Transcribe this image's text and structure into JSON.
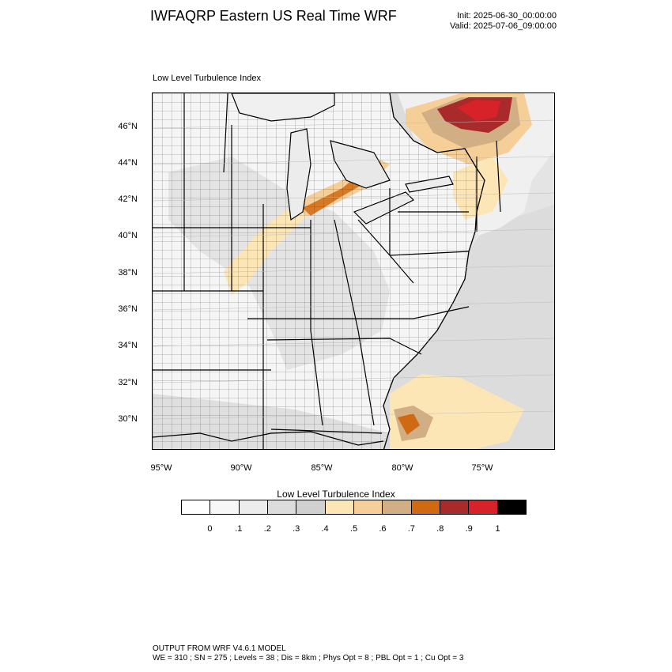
{
  "header": {
    "title": "IWFAQRP Eastern US Real Time WRF",
    "init": "Init: 2025-06-30_00:00:00",
    "valid": "Valid: 2025-07-06_09:00:00"
  },
  "panel": {
    "label": "Low Level Turbulence Index"
  },
  "map": {
    "projection": "lambert-conformal",
    "lat_labels": [
      "46°N",
      "44°N",
      "42°N",
      "40°N",
      "38°N",
      "36°N",
      "34°N",
      "32°N",
      "30°N"
    ],
    "lon_labels": [
      "95°W",
      "90°W",
      "85°W",
      "80°W",
      "75°W"
    ],
    "field": "Low Level Turbulence Index",
    "features": {
      "highest_values": "southern Quebec (0.8–0.9)",
      "elevated_bands": [
        "Great Lakes / Michigan (0.5–0.7)",
        "Illinois–Indiana band (0.4–0.5)",
        "off Georgia–Florida coast (0.5–0.7)",
        "northern New York / New England (0.5)"
      ],
      "background": "0–0.3 over most of the southeast and Atlantic"
    }
  },
  "colorbar": {
    "title": "Low Level Turbulence Index",
    "labels": [
      "0",
      ".1",
      ".2",
      ".3",
      ".4",
      ".5",
      ".6",
      ".7",
      ".8",
      ".9",
      "1"
    ],
    "colors": [
      "#ffffff",
      "#f7f7f7",
      "#ececec",
      "#dcdcdc",
      "#d0d0d0",
      "#fde6b5",
      "#f5cf97",
      "#d2ae84",
      "#cf6a12",
      "#a82a2a",
      "#d8222a",
      "#000000"
    ]
  },
  "footer": {
    "line1": "OUTPUT FROM WRF V4.6.1 MODEL",
    "line2": "WE = 310 ; SN = 275 ; Levels = 38 ; Dis = 8km ; Phys Opt = 8 ; PBL Opt = 1 ; Cu Opt = 3"
  }
}
